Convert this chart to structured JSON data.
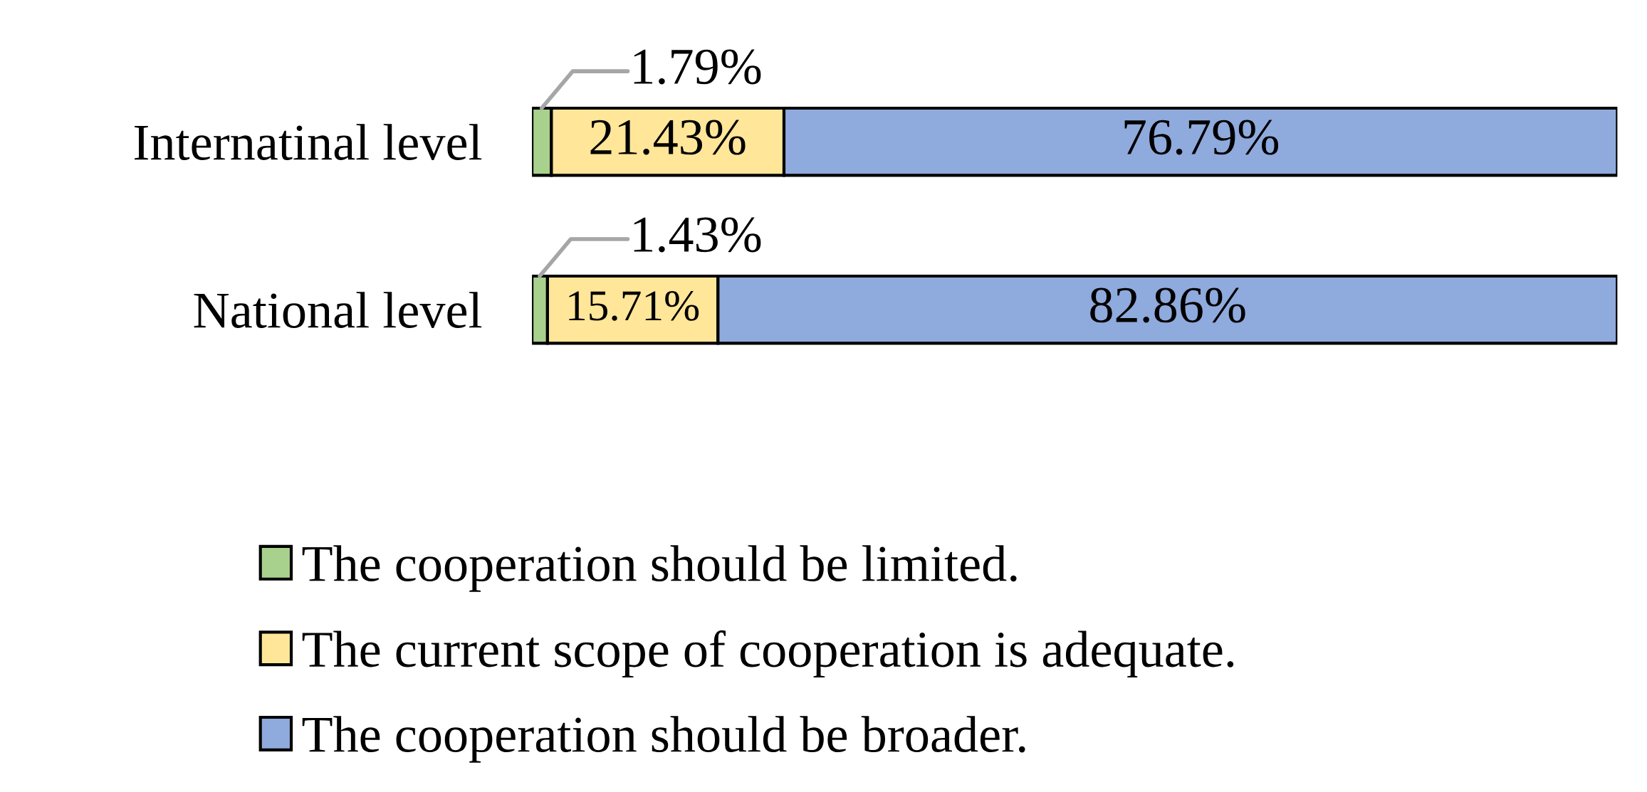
{
  "chart_data": {
    "type": "bar",
    "orientation": "horizontal",
    "stacked": true,
    "categories": [
      "Internatinal level",
      "National level"
    ],
    "series": [
      {
        "name": "The cooperation should be limited.",
        "color": "#a9d18e",
        "values": [
          1.79,
          1.43
        ],
        "value_labels": [
          "1.79%",
          "1.43%"
        ]
      },
      {
        "name": "The current scope of cooperation is adequate.",
        "color": "#ffe699",
        "values": [
          21.43,
          15.71
        ],
        "value_labels": [
          "21.43%",
          "15.71%"
        ]
      },
      {
        "name": "The cooperation should be broader.",
        "color": "#8faadc",
        "values": [
          76.79,
          82.86
        ],
        "value_labels": [
          "76.79%",
          "82.86%"
        ]
      }
    ],
    "legend": "bottom",
    "grid": false,
    "tick_labels": "y"
  }
}
